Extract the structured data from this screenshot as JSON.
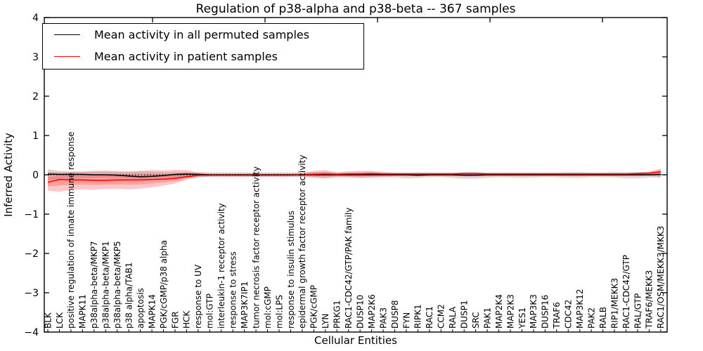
{
  "chart_data": {
    "type": "line",
    "title": "Regulation of p38-alpha and p38-beta -- 367 samples",
    "xlabel": "Cellular Entities",
    "ylabel": "Inferred Activity",
    "ylim": [
      -4,
      4
    ],
    "yticks": [
      4,
      3,
      2,
      1,
      0,
      -1,
      -2,
      -3,
      -4
    ],
    "grid": false,
    "legend_position": "upper-left",
    "zero_line_style": "dotted",
    "x_categories": [
      "BLK",
      "LCK",
      "positive regulation of innate immune response",
      "MAPK11",
      "p38alpha-beta/MKP7",
      "p38alpha-beta/MKP1",
      "p38alpha-beta/MKP5",
      "p38 alpha/TAB1",
      "apoptosis",
      "MAPK14",
      "PGK/cGMP/p38 alpha",
      "FGR",
      "HCK",
      "response to UV",
      "mol:GTP",
      "interleukin-1 receptor activity",
      "response to stress",
      "MAP3K7IP1",
      "tumor necrosis factor receptor activity",
      "mol:cGMP",
      "mol:LPS",
      "response to insulin stimulus",
      "epidermal growth factor receptor activity",
      "PGK/cGMP",
      "LYN",
      "PRKG1",
      "RAC1-CDC42/GTP/PAK family",
      "DUSP10",
      "MAP2K6",
      "PAK3",
      "DUSP8",
      "FYN",
      "RIPK1",
      "RAC1",
      "CCM2",
      "RALA",
      "DUSP1",
      "SRC",
      "PAK1",
      "MAP2K4",
      "MAP2K3",
      "YES1",
      "MAP3K3",
      "DUSP16",
      "TRAF6",
      "CDC42",
      "MAP3K12",
      "PAK2",
      "RALB",
      "RIP1/MEKK3",
      "RAC1-CDC42/GTP",
      "RAL/GTP",
      "TRAF6/MEKK3",
      "RAC1/OSM/MEKK3/MKK3"
    ],
    "series": [
      {
        "name": "Mean activity in all permuted samples",
        "color": "#000000",
        "band_color": "#8a8a8a",
        "band_opacity": 0.32,
        "double_band": false,
        "values": [
          0.02,
          0.01,
          0.01,
          0.01,
          0.0,
          0.0,
          -0.01,
          -0.03,
          -0.05,
          -0.04,
          -0.02,
          0.01,
          0.02,
          0.01,
          0.0,
          0.0,
          0.0,
          0.0,
          0.0,
          0.0,
          0.0,
          0.0,
          0.0,
          0.0,
          0.0,
          0.0,
          0.0,
          0.0,
          0.0,
          0.0,
          0.0,
          0.0,
          -0.01,
          0.0,
          0.0,
          0.0,
          -0.01,
          -0.01,
          0.0,
          0.0,
          0.0,
          0.0,
          0.0,
          0.0,
          0.0,
          0.0,
          0.0,
          0.0,
          0.0,
          0.0,
          0.0,
          0.0,
          0.0,
          0.01
        ],
        "band_low": [
          -0.13,
          -0.1,
          -0.09,
          -0.08,
          -0.08,
          -0.08,
          -0.08,
          -0.09,
          -0.1,
          -0.09,
          -0.08,
          -0.07,
          -0.07,
          -0.06,
          -0.06,
          -0.06,
          -0.06,
          -0.06,
          -0.06,
          -0.06,
          -0.06,
          -0.06,
          -0.06,
          -0.07,
          -0.08,
          -0.07,
          -0.06,
          -0.07,
          -0.07,
          -0.06,
          -0.07,
          -0.09,
          -0.08,
          -0.06,
          -0.06,
          -0.08,
          -0.1,
          -0.1,
          -0.08,
          -0.06,
          -0.07,
          -0.08,
          -0.07,
          -0.06,
          -0.06,
          -0.08,
          -0.08,
          -0.06,
          -0.06,
          -0.07,
          -0.09,
          -0.09,
          -0.07,
          -0.07
        ],
        "band_high": [
          0.14,
          0.1,
          0.09,
          0.08,
          0.08,
          0.08,
          0.08,
          0.08,
          0.08,
          0.08,
          0.07,
          0.07,
          0.07,
          0.06,
          0.06,
          0.06,
          0.06,
          0.06,
          0.06,
          0.06,
          0.06,
          0.06,
          0.06,
          0.07,
          0.07,
          0.06,
          0.06,
          0.06,
          0.06,
          0.06,
          0.06,
          0.06,
          0.06,
          0.06,
          0.06,
          0.06,
          0.07,
          0.07,
          0.06,
          0.06,
          0.06,
          0.06,
          0.06,
          0.06,
          0.06,
          0.07,
          0.07,
          0.06,
          0.06,
          0.07,
          0.07,
          0.07,
          0.07,
          0.09
        ]
      },
      {
        "name": "Mean activity in patient samples",
        "color": "#ff0000",
        "band_color": "#ff2a2a",
        "band_opacity": 0.26,
        "double_band": true,
        "values": [
          -0.19,
          -0.12,
          -0.13,
          -0.13,
          -0.14,
          -0.14,
          -0.13,
          -0.13,
          -0.13,
          -0.12,
          -0.11,
          -0.09,
          -0.05,
          -0.01,
          -0.01,
          -0.01,
          -0.01,
          -0.01,
          -0.01,
          -0.01,
          -0.01,
          -0.01,
          0.0,
          0.01,
          0.02,
          0.01,
          0.02,
          0.02,
          0.03,
          0.02,
          0.02,
          0.02,
          0.02,
          0.02,
          0.02,
          0.02,
          0.03,
          0.03,
          0.02,
          0.02,
          0.02,
          0.02,
          0.02,
          0.02,
          0.02,
          0.02,
          0.02,
          0.02,
          0.02,
          0.02,
          0.02,
          0.03,
          0.04,
          0.08
        ],
        "band_low": [
          -0.4,
          -0.43,
          -0.38,
          -0.37,
          -0.38,
          -0.36,
          -0.36,
          -0.37,
          -0.35,
          -0.32,
          -0.28,
          -0.22,
          -0.13,
          -0.06,
          -0.04,
          -0.04,
          -0.04,
          -0.04,
          -0.04,
          -0.04,
          -0.04,
          -0.04,
          -0.04,
          -0.07,
          -0.09,
          -0.05,
          -0.07,
          -0.08,
          -0.07,
          -0.06,
          -0.04,
          -0.04,
          -0.04,
          -0.04,
          -0.04,
          -0.04,
          -0.04,
          -0.04,
          -0.04,
          -0.04,
          -0.04,
          -0.04,
          -0.04,
          -0.04,
          -0.04,
          -0.04,
          -0.04,
          -0.04,
          -0.04,
          -0.04,
          -0.04,
          -0.04,
          -0.03,
          -0.05
        ],
        "band_high": [
          0.08,
          0.06,
          0.07,
          0.08,
          0.1,
          0.11,
          0.09,
          0.08,
          0.1,
          0.12,
          0.11,
          0.13,
          0.12,
          0.06,
          0.04,
          0.04,
          0.04,
          0.04,
          0.04,
          0.04,
          0.04,
          0.04,
          0.05,
          0.1,
          0.12,
          0.06,
          0.09,
          0.1,
          0.1,
          0.07,
          0.05,
          0.05,
          0.05,
          0.05,
          0.05,
          0.05,
          0.06,
          0.06,
          0.05,
          0.05,
          0.05,
          0.05,
          0.05,
          0.05,
          0.05,
          0.05,
          0.05,
          0.05,
          0.05,
          0.05,
          0.05,
          0.06,
          0.08,
          0.16
        ]
      }
    ]
  }
}
